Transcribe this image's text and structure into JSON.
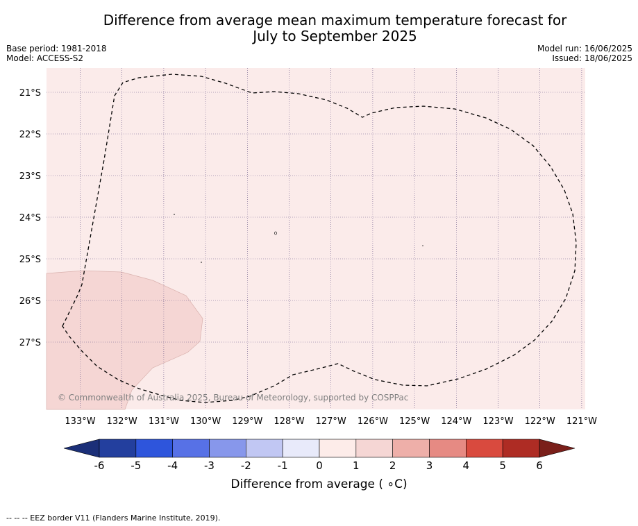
{
  "title": {
    "line1": "Difference from average mean maximum temperature forecast for",
    "line2": "July to September 2025"
  },
  "meta": {
    "base_period": "Base period: 1981-2018",
    "model": "Model: ACCESS-S2",
    "model_run": "Model run: 16/06/2025",
    "issued": "Issued: 18/06/2025"
  },
  "map": {
    "copyright": "© Commonwealth of Australia 2025, Bureau of Meteorology, supported by COSPPac",
    "lon_labels": [
      "133°W",
      "132°W",
      "131°W",
      "130°W",
      "129°W",
      "128°W",
      "127°W",
      "126°W",
      "125°W",
      "124°W",
      "123°W",
      "122°W",
      "121°W"
    ],
    "lat_labels": [
      "21°S",
      "22°S",
      "23°S",
      "24°S",
      "25°S",
      "26°S",
      "27°S"
    ],
    "background_category": "0 to 1",
    "colors": {
      "zero_to_one": "#fbebea",
      "one_to_two": "#f5d6d4"
    }
  },
  "colorbar": {
    "label": "Difference from average ( ∘C)",
    "ticks": [
      "-6",
      "-5",
      "-4",
      "-3",
      "-2",
      "-1",
      "0",
      "1",
      "2",
      "3",
      "4",
      "5",
      "6"
    ],
    "colors": [
      "#233f9e",
      "#2e55dc",
      "#5771e6",
      "#8797eb",
      "#c1c7f3",
      "#e8eafa",
      "#fdece9",
      "#f5d6d4",
      "#eeafa9",
      "#e68a83",
      "#d94a3e",
      "#ae2c24"
    ],
    "min_extend_color": "#1b2f78",
    "max_extend_color": "#7a1f1a"
  },
  "footer": {
    "legend_text": "--  --  -- EEZ border V11 (Flanders Marine Institute, 2019)."
  }
}
